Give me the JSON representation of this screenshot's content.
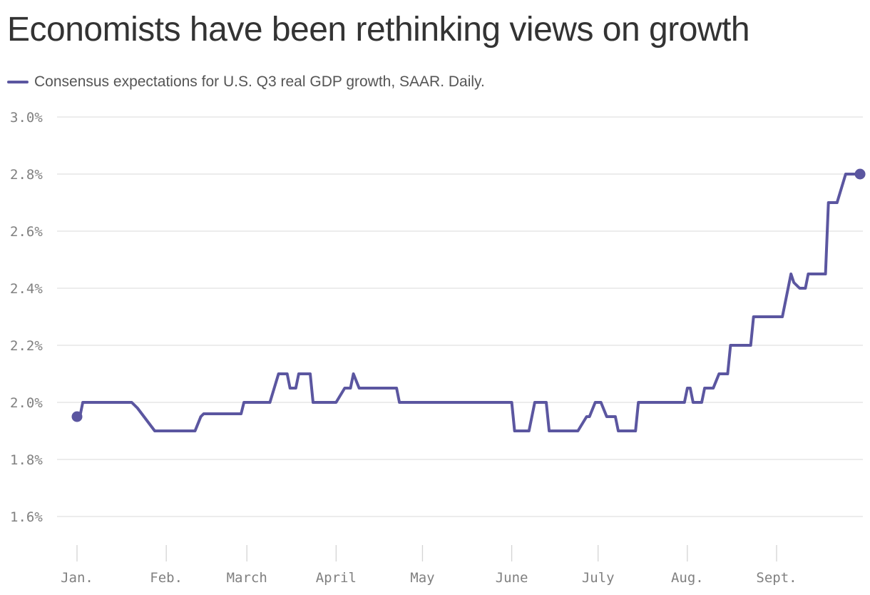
{
  "chart_data": {
    "type": "line",
    "title": "Economists have been rethinking views on growth",
    "legend_position": "top-left",
    "grid": true,
    "series": [
      {
        "name": "Consensus expectations for U.S. Q3 real GDP growth, SAAR. Daily.",
        "color": "#5b56a0",
        "points": [
          [
            "2021-01-01",
            1.95
          ],
          [
            "2021-01-02",
            1.95
          ],
          [
            "2021-01-03",
            2.0
          ],
          [
            "2021-01-20",
            2.0
          ],
          [
            "2021-01-22",
            1.98
          ],
          [
            "2021-01-28",
            1.9
          ],
          [
            "2021-02-11",
            1.9
          ],
          [
            "2021-02-13",
            1.95
          ],
          [
            "2021-02-14",
            1.96
          ],
          [
            "2021-02-27",
            1.96
          ],
          [
            "2021-02-28",
            2.0
          ],
          [
            "2021-03-09",
            2.0
          ],
          [
            "2021-03-12",
            2.1
          ],
          [
            "2021-03-15",
            2.1
          ],
          [
            "2021-03-16",
            2.05
          ],
          [
            "2021-03-18",
            2.05
          ],
          [
            "2021-03-19",
            2.1
          ],
          [
            "2021-03-23",
            2.1
          ],
          [
            "2021-03-24",
            2.0
          ],
          [
            "2021-04-01",
            2.0
          ],
          [
            "2021-04-04",
            2.05
          ],
          [
            "2021-04-06",
            2.05
          ],
          [
            "2021-04-07",
            2.1
          ],
          [
            "2021-04-09",
            2.05
          ],
          [
            "2021-04-22",
            2.05
          ],
          [
            "2021-04-23",
            2.0
          ],
          [
            "2021-06-01",
            2.0
          ],
          [
            "2021-06-02",
            1.9
          ],
          [
            "2021-06-07",
            1.9
          ],
          [
            "2021-06-09",
            2.0
          ],
          [
            "2021-06-13",
            2.0
          ],
          [
            "2021-06-14",
            1.9
          ],
          [
            "2021-06-24",
            1.9
          ],
          [
            "2021-06-27",
            1.95
          ],
          [
            "2021-06-28",
            1.95
          ],
          [
            "2021-06-30",
            2.0
          ],
          [
            "2021-07-02",
            2.0
          ],
          [
            "2021-07-04",
            1.95
          ],
          [
            "2021-07-07",
            1.95
          ],
          [
            "2021-07-08",
            1.9
          ],
          [
            "2021-07-14",
            1.9
          ],
          [
            "2021-07-15",
            2.0
          ],
          [
            "2021-07-31",
            2.0
          ],
          [
            "2021-08-01",
            2.05
          ],
          [
            "2021-08-02",
            2.05
          ],
          [
            "2021-08-03",
            2.0
          ],
          [
            "2021-08-06",
            2.0
          ],
          [
            "2021-08-07",
            2.05
          ],
          [
            "2021-08-10",
            2.05
          ],
          [
            "2021-08-12",
            2.1
          ],
          [
            "2021-08-15",
            2.1
          ],
          [
            "2021-08-16",
            2.2
          ],
          [
            "2021-08-23",
            2.2
          ],
          [
            "2021-08-24",
            2.3
          ],
          [
            "2021-09-03",
            2.3
          ],
          [
            "2021-09-06",
            2.45
          ],
          [
            "2021-09-07",
            2.42
          ],
          [
            "2021-09-09",
            2.4
          ],
          [
            "2021-09-11",
            2.4
          ],
          [
            "2021-09-12",
            2.45
          ],
          [
            "2021-09-18",
            2.45
          ],
          [
            "2021-09-19",
            2.7
          ],
          [
            "2021-09-22",
            2.7
          ],
          [
            "2021-09-25",
            2.8
          ],
          [
            "2021-09-30",
            2.8
          ]
        ]
      }
    ],
    "x_axis": {
      "type": "date",
      "range": [
        "2020-12-29",
        "2021-10-07"
      ],
      "ticks": [
        {
          "date": "2021-01-01",
          "label": "Jan."
        },
        {
          "date": "2021-02-01",
          "label": "Feb."
        },
        {
          "date": "2021-03-01",
          "label": "March"
        },
        {
          "date": "2021-04-01",
          "label": "April"
        },
        {
          "date": "2021-05-01",
          "label": "May"
        },
        {
          "date": "2021-06-01",
          "label": "June"
        },
        {
          "date": "2021-07-01",
          "label": "July"
        },
        {
          "date": "2021-08-01",
          "label": "Aug."
        },
        {
          "date": "2021-09-01",
          "label": "Sept."
        }
      ]
    },
    "y_axis": {
      "range": [
        1.5,
        3.0
      ],
      "ticks": [
        {
          "value": 1.6,
          "label": "1.6%"
        },
        {
          "value": 1.8,
          "label": "1.8%"
        },
        {
          "value": 2.0,
          "label": "2.0%"
        },
        {
          "value": 2.2,
          "label": "2.2%"
        },
        {
          "value": 2.4,
          "label": "2.4%"
        },
        {
          "value": 2.6,
          "label": "2.6%"
        },
        {
          "value": 2.8,
          "label": "2.8%"
        },
        {
          "value": 3.0,
          "label": "3.0%"
        }
      ]
    }
  }
}
